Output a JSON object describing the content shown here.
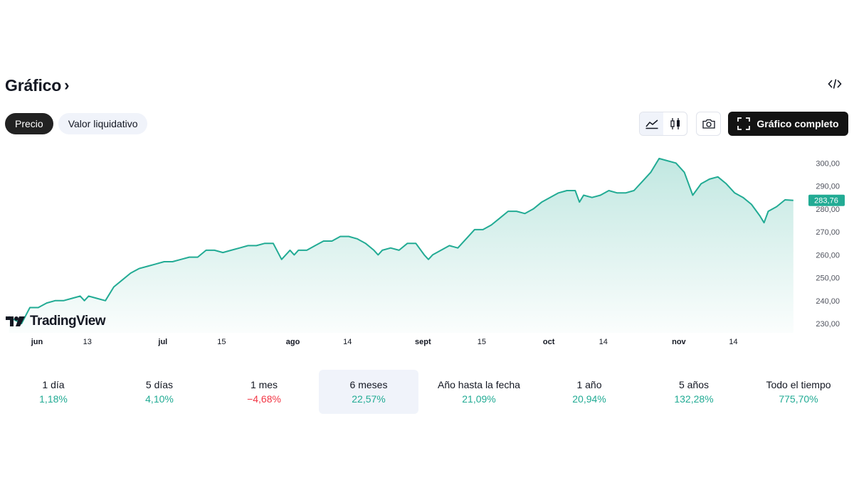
{
  "header": {
    "title": "Gráfico",
    "chevron": "›",
    "embed_icon": "code-icon"
  },
  "tabs": [
    {
      "label": "Precio",
      "active": true
    },
    {
      "label": "Valor liquidativo",
      "active": false
    }
  ],
  "toolbar": {
    "area_icon": "area-chart-icon",
    "candle_icon": "candlestick-icon",
    "camera_icon": "camera-icon",
    "full_chart_label": "Gráfico completo",
    "full_chart_icon": "fullscreen-icon"
  },
  "logo": {
    "text": "TradingView"
  },
  "colors": {
    "line": "#22ab94",
    "area_top": "#22ab94",
    "accent_price": "#22ab94",
    "negative": "#f23645",
    "dark_button": "#131313"
  },
  "periods": [
    {
      "label": "1 día",
      "value": "1,18%",
      "sign": "pos"
    },
    {
      "label": "5 días",
      "value": "4,10%",
      "sign": "pos"
    },
    {
      "label": "1 mes",
      "value": "−4,68%",
      "sign": "neg"
    },
    {
      "label": "6 meses",
      "value": "22,57%",
      "sign": "pos",
      "selected": true
    },
    {
      "label": "Año hasta la fecha",
      "value": "21,09%",
      "sign": "pos"
    },
    {
      "label": "1 año",
      "value": "20,94%",
      "sign": "pos"
    },
    {
      "label": "5 años",
      "value": "132,28%",
      "sign": "pos"
    },
    {
      "label": "Todo el tiempo",
      "value": "775,70%",
      "sign": "pos"
    }
  ],
  "chart_data": {
    "type": "area",
    "y_ticks": [
      "230,00",
      "240,00",
      "250,00",
      "260,00",
      "270,00",
      "280,00",
      "290,00",
      "300,00"
    ],
    "y_tick_values": [
      230,
      240,
      250,
      260,
      270,
      280,
      290,
      300
    ],
    "ylim": [
      226,
      306
    ],
    "x_ticks": [
      {
        "label": "jun",
        "day": 0,
        "month": true
      },
      {
        "label": "13",
        "day": 12,
        "month": false
      },
      {
        "label": "jul",
        "day": 30,
        "month": true
      },
      {
        "label": "15",
        "day": 44,
        "month": false
      },
      {
        "label": "ago",
        "day": 61,
        "month": true
      },
      {
        "label": "14",
        "day": 74,
        "month": false
      },
      {
        "label": "sept",
        "day": 92,
        "month": true
      },
      {
        "label": "15",
        "day": 106,
        "month": false
      },
      {
        "label": "oct",
        "day": 122,
        "month": true
      },
      {
        "label": "14",
        "day": 135,
        "month": false
      },
      {
        "label": "nov",
        "day": 153,
        "month": true
      },
      {
        "label": "14",
        "day": 166,
        "month": false
      }
    ],
    "xlim": [
      0,
      190
    ],
    "last_price": 283.76,
    "last_price_label": "283,76",
    "x": [
      -5,
      -2,
      0,
      2,
      4,
      6,
      8,
      10,
      12,
      13,
      14,
      16,
      18,
      20,
      22,
      24,
      26,
      28,
      30,
      32,
      34,
      36,
      38,
      40,
      42,
      44,
      46,
      48,
      50,
      52,
      54,
      56,
      58,
      60,
      62,
      63,
      64,
      66,
      68,
      70,
      72,
      74,
      76,
      78,
      80,
      82,
      83,
      84,
      86,
      88,
      90,
      92,
      94,
      95,
      96,
      98,
      100,
      102,
      104,
      106,
      108,
      110,
      112,
      114,
      116,
      118,
      120,
      122,
      124,
      126,
      128,
      130,
      131,
      132,
      134,
      136,
      138,
      140,
      142,
      144,
      146,
      148,
      150,
      152,
      154,
      156,
      158,
      160,
      162,
      164,
      166,
      168,
      170,
      172,
      174,
      175,
      176,
      178,
      180,
      182
    ],
    "y": [
      233,
      230,
      237,
      237,
      239,
      240,
      240,
      241,
      242,
      240,
      242,
      241,
      240,
      246,
      249,
      252,
      254,
      255,
      256,
      257,
      257,
      258,
      259,
      259,
      262,
      262,
      261,
      262,
      263,
      264,
      264,
      265,
      265,
      258,
      262,
      260,
      262,
      262,
      264,
      266,
      266,
      268,
      268,
      267,
      265,
      262,
      260,
      262,
      263,
      262,
      265,
      265,
      260,
      258,
      260,
      262,
      264,
      263,
      267,
      271,
      271,
      273,
      276,
      279,
      279,
      278,
      280,
      283,
      285,
      287,
      288,
      288,
      283,
      286,
      285,
      286,
      288,
      287,
      287,
      288,
      292,
      296,
      302,
      301,
      300,
      296,
      286,
      291,
      293,
      294,
      291,
      287,
      285,
      282,
      277,
      274,
      279,
      281,
      284,
      283.76
    ]
  }
}
